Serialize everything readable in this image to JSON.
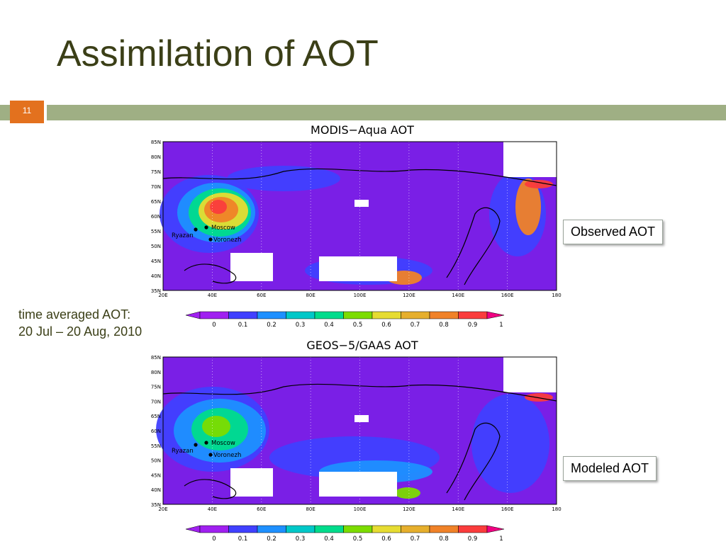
{
  "slide": {
    "title": "Assimilation of AOT",
    "number": "11",
    "note_line1": "time averaged AOT:",
    "note_line2": "20 Jul – 20 Aug, 2010"
  },
  "maps": [
    {
      "title": "MODIS−Aqua AOT",
      "callout": "Observed AOT"
    },
    {
      "title": "GEOS−5/GAAS AOT",
      "callout": "Modeled AOT"
    }
  ],
  "axes": {
    "lat_ticks": [
      "85N",
      "80N",
      "75N",
      "70N",
      "65N",
      "60N",
      "55N",
      "50N",
      "45N",
      "40N",
      "35N"
    ],
    "lon_ticks": [
      "20E",
      "40E",
      "60E",
      "80E",
      "100E",
      "120E",
      "140E",
      "160E",
      "180"
    ]
  },
  "cities": [
    "Moscow",
    "Voronezh",
    "Ryazan"
  ],
  "colorbar": {
    "labels": [
      "0",
      "0.1",
      "0.2",
      "0.3",
      "0.4",
      "0.5",
      "0.6",
      "0.7",
      "0.8",
      "0.9",
      "1"
    ],
    "colors": [
      "#a020f0",
      "#4040ff",
      "#1e90ff",
      "#00c8c8",
      "#00dc8c",
      "#7cdc00",
      "#e6dc32",
      "#e6af2d",
      "#f08228",
      "#fa3c3c",
      "#f00082"
    ]
  }
}
